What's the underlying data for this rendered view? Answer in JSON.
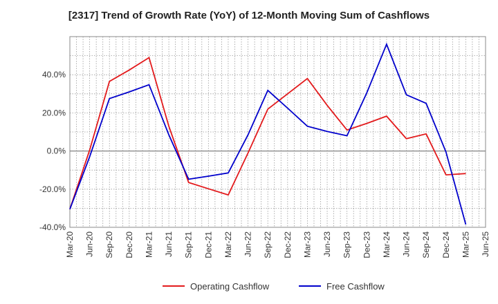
{
  "chart_data": {
    "type": "line",
    "title": "[2317]  Trend of Growth Rate (YoY) of 12-Month Moving Sum of Cashflows",
    "xlabel": "",
    "ylabel": "",
    "categories": [
      "Mar-20",
      "Jun-20",
      "Sep-20",
      "Dec-20",
      "Mar-21",
      "Jun-21",
      "Sep-21",
      "Dec-21",
      "Mar-22",
      "Jun-22",
      "Sep-22",
      "Dec-22",
      "Mar-23",
      "Jun-23",
      "Sep-23",
      "Dec-23",
      "Mar-24",
      "Jun-24",
      "Sep-24",
      "Dec-24",
      "Mar-25",
      "Jun-25"
    ],
    "y_ticks": [
      "-40.0%",
      "-20.0%",
      "0.0%",
      "20.0%",
      "40.0%"
    ],
    "ylim": [
      -40,
      60
    ],
    "grid": true,
    "legend_position": "bottom-center",
    "series": [
      {
        "name": "Operating Cashflow",
        "color": "#e31a1c",
        "values": [
          -30.5,
          0.5,
          36.5,
          42.5,
          49.0,
          13.0,
          -16.5,
          -19.8,
          -23.0,
          -1.0,
          22.0,
          30.0,
          38.0,
          24.0,
          11.0,
          14.5,
          18.3,
          6.5,
          9.0,
          -12.5,
          -11.8,
          null
        ]
      },
      {
        "name": "Free Cashflow",
        "color": "#0000cc",
        "values": [
          -30.5,
          -3.0,
          27.5,
          31.0,
          34.8,
          8.5,
          -14.8,
          -13.2,
          -11.5,
          8.5,
          31.8,
          22.5,
          13.0,
          10.3,
          8.0,
          30.5,
          56.0,
          29.5,
          25.0,
          -0.5,
          -38.5,
          null
        ]
      }
    ]
  }
}
